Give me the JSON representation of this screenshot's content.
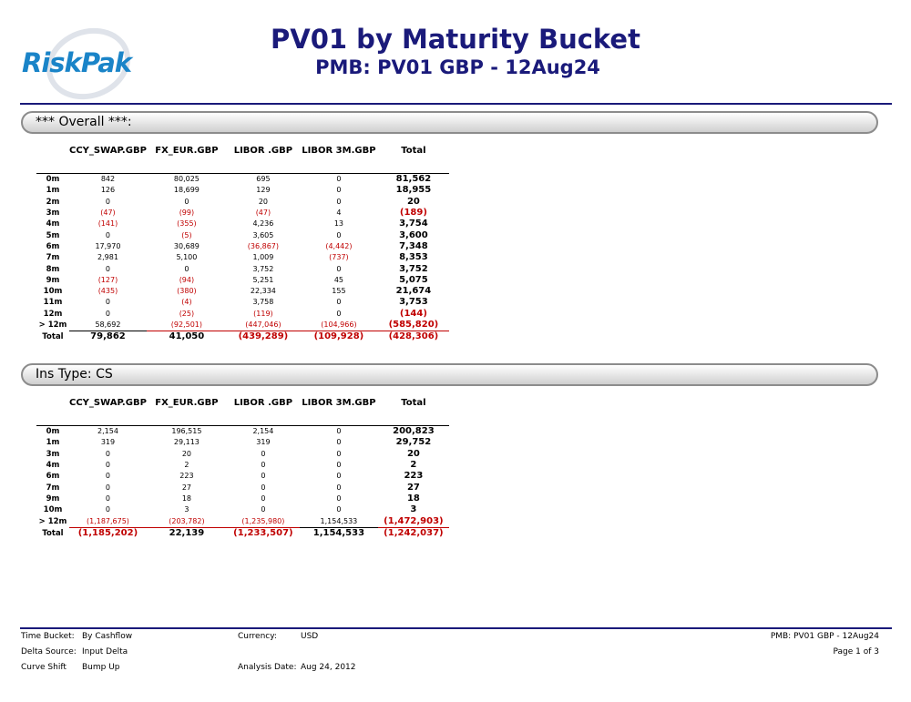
{
  "logo_text": "RiskPak",
  "title": "PV01 by Maturity Bucket",
  "subtitle": "PMB: PV01 GBP - 12Aug24",
  "columns": [
    "CCY_SWAP.GBP",
    "FX_EUR.GBP",
    "LIBOR .GBP",
    "LIBOR 3M.GBP",
    "Total"
  ],
  "sections": [
    {
      "label": "*** Overall ***:",
      "rows": [
        {
          "bucket": "0m",
          "vals": [
            "842",
            "80,025",
            "695",
            "0",
            "81,562"
          ]
        },
        {
          "bucket": "1m",
          "vals": [
            "126",
            "18,699",
            "129",
            "0",
            "18,955"
          ]
        },
        {
          "bucket": "2m",
          "vals": [
            "0",
            "0",
            "20",
            "0",
            "20"
          ]
        },
        {
          "bucket": "3m",
          "vals": [
            "(47)",
            "(99)",
            "(47)",
            "4",
            "(189)"
          ]
        },
        {
          "bucket": "4m",
          "vals": [
            "(141)",
            "(355)",
            "4,236",
            "13",
            "3,754"
          ]
        },
        {
          "bucket": "5m",
          "vals": [
            "0",
            "(5)",
            "3,605",
            "0",
            "3,600"
          ]
        },
        {
          "bucket": "6m",
          "vals": [
            "17,970",
            "30,689",
            "(36,867)",
            "(4,442)",
            "7,348"
          ]
        },
        {
          "bucket": "7m",
          "vals": [
            "2,981",
            "5,100",
            "1,009",
            "(737)",
            "8,353"
          ]
        },
        {
          "bucket": "8m",
          "vals": [
            "0",
            "0",
            "3,752",
            "0",
            "3,752"
          ]
        },
        {
          "bucket": "9m",
          "vals": [
            "(127)",
            "(94)",
            "5,251",
            "45",
            "5,075"
          ]
        },
        {
          "bucket": "10m",
          "vals": [
            "(435)",
            "(380)",
            "22,334",
            "155",
            "21,674"
          ]
        },
        {
          "bucket": "11m",
          "vals": [
            "0",
            "(4)",
            "3,758",
            "0",
            "3,753"
          ]
        },
        {
          "bucket": "12m",
          "vals": [
            "0",
            "(25)",
            "(119)",
            "0",
            "(144)"
          ]
        },
        {
          "bucket": "> 12m",
          "vals": [
            "58,692",
            "(92,501)",
            "(447,046)",
            "(104,966)",
            "(585,820)"
          ]
        }
      ],
      "total": {
        "bucket": "Total",
        "vals": [
          "79,862",
          "41,050",
          "(439,289)",
          "(109,928)",
          "(428,306)"
        ]
      }
    },
    {
      "label": "Ins Type: CS",
      "rows": [
        {
          "bucket": "0m",
          "vals": [
            "2,154",
            "196,515",
            "2,154",
            "0",
            "200,823"
          ]
        },
        {
          "bucket": "1m",
          "vals": [
            "319",
            "29,113",
            "319",
            "0",
            "29,752"
          ]
        },
        {
          "bucket": "3m",
          "vals": [
            "0",
            "20",
            "0",
            "0",
            "20"
          ]
        },
        {
          "bucket": "4m",
          "vals": [
            "0",
            "2",
            "0",
            "0",
            "2"
          ]
        },
        {
          "bucket": "6m",
          "vals": [
            "0",
            "223",
            "0",
            "0",
            "223"
          ]
        },
        {
          "bucket": "7m",
          "vals": [
            "0",
            "27",
            "0",
            "0",
            "27"
          ]
        },
        {
          "bucket": "9m",
          "vals": [
            "0",
            "18",
            "0",
            "0",
            "18"
          ]
        },
        {
          "bucket": "10m",
          "vals": [
            "0",
            "3",
            "0",
            "0",
            "3"
          ]
        },
        {
          "bucket": "> 12m",
          "vals": [
            "(1,187,675)",
            "(203,782)",
            "(1,235,980)",
            "1,154,533",
            "(1,472,903)"
          ]
        }
      ],
      "total": {
        "bucket": "Total",
        "vals": [
          "(1,185,202)",
          "22,139",
          "(1,233,507)",
          "1,154,533",
          "(1,242,037)"
        ]
      }
    }
  ],
  "footer": {
    "time_bucket_label": "Time Bucket:",
    "time_bucket_value": "By Cashflow",
    "delta_source_label": "Delta Source:",
    "delta_source_value": "Input Delta",
    "curve_shift_label": "Curve Shift",
    "curve_shift_value": "Bump Up",
    "currency_label": "Currency:",
    "currency_value": "USD",
    "analysis_date_label": "Analysis Date:",
    "analysis_date_value": "Aug 24, 2012",
    "report_name": "PMB: PV01 GBP - 12Aug24",
    "page_label": "Page 1 of 3"
  },
  "colors": {
    "title": "#1a1a7a",
    "negative": "#c00000",
    "logo": "#1a84c8"
  }
}
